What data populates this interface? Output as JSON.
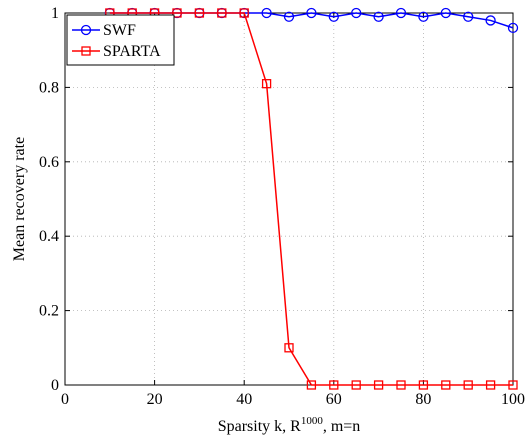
{
  "chart_data": {
    "type": "line",
    "xlabel_parts": {
      "prefix": "Sparsity k, R",
      "superscript": "1000",
      "suffix": ", m=n"
    },
    "ylabel": "Mean recovery rate",
    "xlim": [
      0,
      100
    ],
    "ylim": [
      0,
      1
    ],
    "x_ticks": [
      "0",
      "20",
      "40",
      "60",
      "80",
      "100"
    ],
    "y_ticks": [
      "0",
      "0.2",
      "0.4",
      "0.6",
      "0.8",
      "1"
    ],
    "grid": true,
    "legend_position": "top-left",
    "x": [
      10,
      15,
      20,
      25,
      30,
      35,
      40,
      45,
      50,
      55,
      60,
      65,
      70,
      75,
      80,
      85,
      90,
      95,
      100
    ],
    "series": [
      {
        "name": "SWF",
        "color": "#0000ff",
        "marker": "circle",
        "values": [
          1,
          1,
          1,
          1,
          1,
          1,
          1,
          1,
          0.99,
          1,
          0.99,
          1,
          0.99,
          1,
          0.99,
          1,
          0.99,
          0.98,
          0.96
        ]
      },
      {
        "name": "SPARTA",
        "color": "#ff0000",
        "marker": "square",
        "values": [
          1,
          1,
          1,
          1,
          1,
          1,
          1,
          0.81,
          0.1,
          0,
          0,
          0,
          0,
          0,
          0,
          0,
          0,
          0,
          0
        ]
      }
    ]
  }
}
